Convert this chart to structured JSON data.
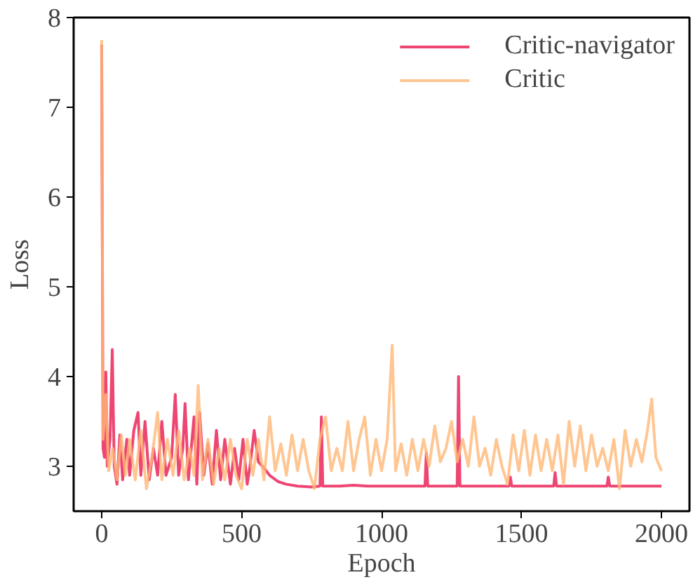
{
  "chart_data": {
    "type": "line",
    "xlabel": "Epoch",
    "ylabel": "Loss",
    "xlim": [
      -100,
      2100
    ],
    "ylim": [
      2.5,
      8
    ],
    "xticks": [
      0,
      500,
      1000,
      1500,
      2000
    ],
    "yticks": [
      3,
      4,
      5,
      6,
      7,
      8
    ],
    "grid": false,
    "legend": "top right",
    "line_style": "solid",
    "marker": "none",
    "series": [
      {
        "name": "Critic-navigator",
        "color": "#ee4673",
        "x": [
          0,
          5,
          10,
          15,
          20,
          30,
          38,
          45,
          55,
          65,
          75,
          90,
          100,
          115,
          130,
          140,
          155,
          170,
          185,
          200,
          215,
          230,
          250,
          263,
          275,
          290,
          298,
          310,
          330,
          340,
          350,
          365,
          380,
          395,
          410,
          425,
          440,
          460,
          475,
          490,
          505,
          520,
          530,
          545,
          560,
          580,
          600,
          630,
          660,
          700,
          750,
          780,
          785,
          790,
          850,
          900,
          950,
          1000,
          1100,
          1155,
          1160,
          1165,
          1270,
          1275,
          1280,
          1400,
          1455,
          1460,
          1465,
          1615,
          1620,
          1625,
          1805,
          1810,
          1815,
          2000
        ],
        "values": [
          7.7,
          3.2,
          3.1,
          4.05,
          3.0,
          3.3,
          4.3,
          3.0,
          2.8,
          3.35,
          2.85,
          3.3,
          2.9,
          3.4,
          3.6,
          2.9,
          3.5,
          2.85,
          3.2,
          2.9,
          3.5,
          2.9,
          3.1,
          3.8,
          2.9,
          3.2,
          3.7,
          2.85,
          3.55,
          2.8,
          3.6,
          2.9,
          3.25,
          2.8,
          3.4,
          2.85,
          3.3,
          2.8,
          3.2,
          2.85,
          3.3,
          2.8,
          3.0,
          3.4,
          3.05,
          2.98,
          2.9,
          2.83,
          2.8,
          2.78,
          2.77,
          2.78,
          3.55,
          2.78,
          2.78,
          2.79,
          2.78,
          2.78,
          2.78,
          2.78,
          3.15,
          2.78,
          2.78,
          4.0,
          2.78,
          2.78,
          2.78,
          2.88,
          2.78,
          2.78,
          2.93,
          2.78,
          2.78,
          2.88,
          2.78,
          2.78
        ]
      },
      {
        "name": "Critic",
        "color": "#ffb877",
        "x": [
          0,
          5,
          15,
          25,
          40,
          55,
          70,
          85,
          100,
          120,
          140,
          160,
          180,
          200,
          215,
          235,
          255,
          275,
          295,
          315,
          330,
          345,
          360,
          380,
          400,
          420,
          440,
          460,
          480,
          500,
          520,
          540,
          560,
          580,
          600,
          620,
          640,
          660,
          680,
          700,
          720,
          740,
          760,
          780,
          800,
          820,
          840,
          860,
          880,
          900,
          920,
          940,
          960,
          980,
          1000,
          1020,
          1038,
          1050,
          1070,
          1090,
          1110,
          1130,
          1150,
          1170,
          1190,
          1210,
          1230,
          1250,
          1270,
          1290,
          1310,
          1330,
          1350,
          1370,
          1390,
          1410,
          1430,
          1450,
          1470,
          1490,
          1510,
          1530,
          1550,
          1570,
          1590,
          1610,
          1630,
          1650,
          1670,
          1690,
          1710,
          1730,
          1750,
          1770,
          1790,
          1810,
          1830,
          1850,
          1870,
          1890,
          1910,
          1930,
          1950,
          1965,
          1980,
          2000
        ],
        "values": [
          7.75,
          3.3,
          3.8,
          2.95,
          3.2,
          2.85,
          3.35,
          2.9,
          3.3,
          2.85,
          3.4,
          2.75,
          3.1,
          3.6,
          2.85,
          3.3,
          2.9,
          3.4,
          2.85,
          3.2,
          2.9,
          3.9,
          2.85,
          3.3,
          2.8,
          3.2,
          2.85,
          3.3,
          2.9,
          2.75,
          3.3,
          2.9,
          3.3,
          2.85,
          3.55,
          2.95,
          3.25,
          2.9,
          3.35,
          2.95,
          3.3,
          2.95,
          2.75,
          3.3,
          3.55,
          2.95,
          3.2,
          2.95,
          3.5,
          2.95,
          3.3,
          3.55,
          2.9,
          3.3,
          2.95,
          3.3,
          4.35,
          2.95,
          3.25,
          2.9,
          3.3,
          2.95,
          3.3,
          3.0,
          3.45,
          3.05,
          3.2,
          3.5,
          3.05,
          3.3,
          3.0,
          3.55,
          3.0,
          3.2,
          2.9,
          3.3,
          3.0,
          2.8,
          3.35,
          2.95,
          3.4,
          2.9,
          3.35,
          2.95,
          3.3,
          2.95,
          3.35,
          2.8,
          3.5,
          3.0,
          3.45,
          2.95,
          3.35,
          3.0,
          3.2,
          2.95,
          3.3,
          2.75,
          3.4,
          3.0,
          3.3,
          3.05,
          3.4,
          3.75,
          3.1,
          2.95
        ]
      }
    ]
  }
}
